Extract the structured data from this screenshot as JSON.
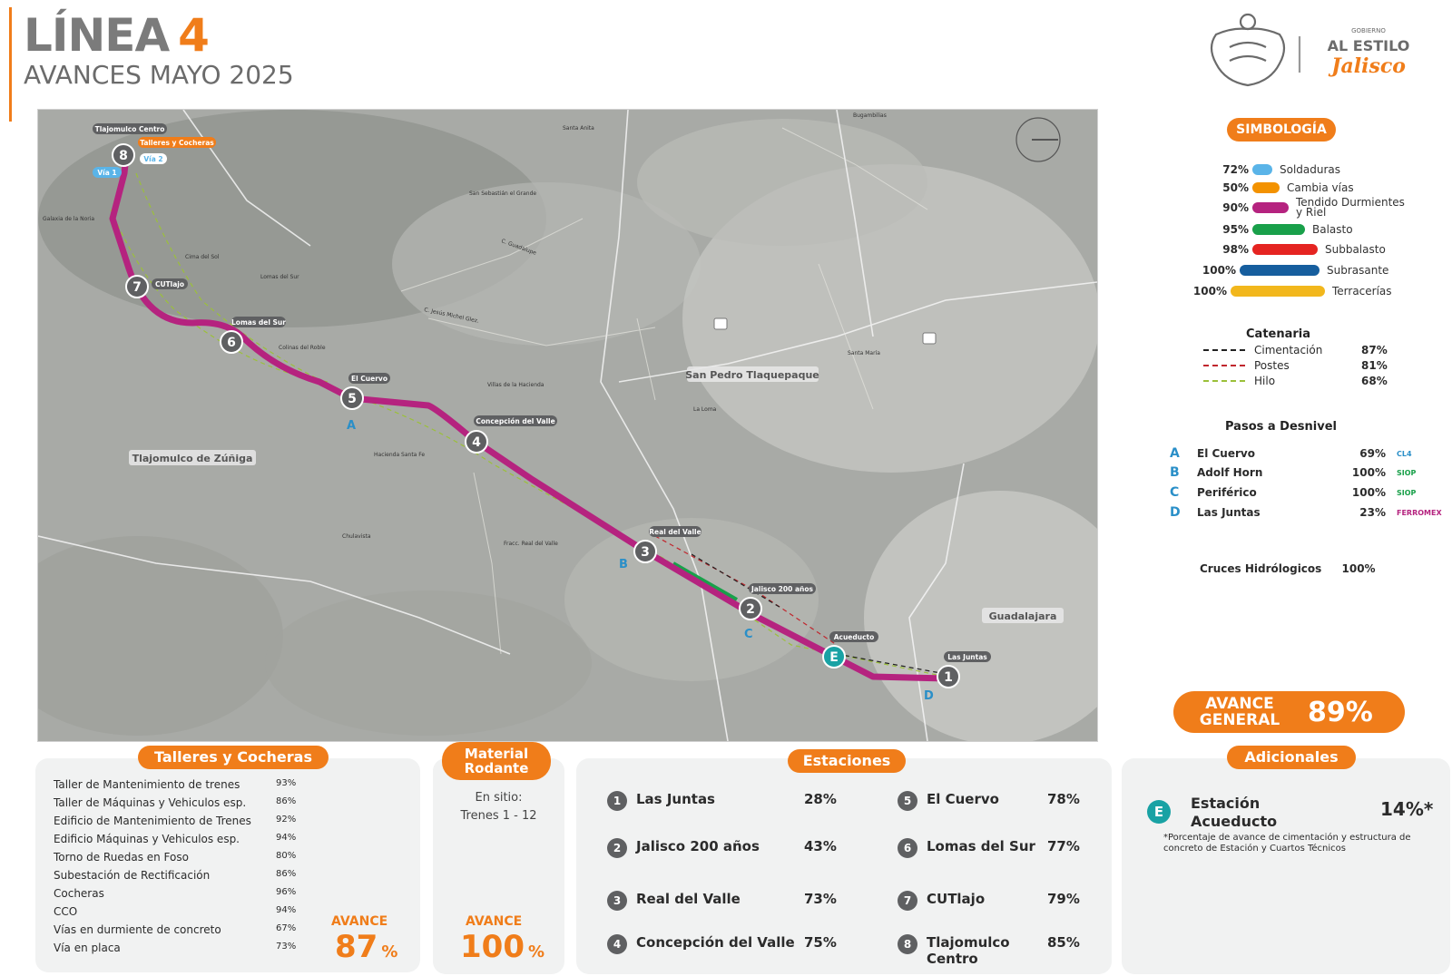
{
  "header": {
    "title_text": "LÍNEA",
    "title_number": "4",
    "subtitle": "AVANCES MAYO 2025",
    "logo_text_top": "GOBIERNO",
    "logo_text_mid": "AL ESTILO",
    "logo_text_bottom": "Jalisco"
  },
  "map": {
    "place_labels": {
      "tlajomulco_centro": "Tlajomulco Centro",
      "talleres_cocheras": "Talleres y Cocheras",
      "via1": "Vía 1",
      "via2": "Vía 2",
      "cutlajo": "CUTlajo",
      "lomas_del_sur": "Lomas del Sur",
      "el_cuervo": "El Cuervo",
      "concepcion_del_valle": "Concepción del Valle",
      "real_del_valle": "Real del Valle",
      "jalisco_200": "Jalisco 200 años",
      "acueducto": "Acueducto",
      "las_juntas": "Las Juntas",
      "san_pedro": "San Pedro Tlaquepaque",
      "tlajomulco_zuniga": "Tlajomulco de Zúñiga",
      "guadalajara": "Guadalajara"
    },
    "small_labels": [
      "Santa Anita",
      "San Sebastián el Grande",
      "Cima del Sol",
      "Lomas del Sur",
      "Colinas del Roble",
      "Villas de la Hacienda",
      "Hacienda Santa Fe",
      "Chulavista",
      "Fracc. Real del Valle",
      "La Loma",
      "Santa María",
      "Bugambilias",
      "Galaxia de la Noria",
      "C. Guadalupe",
      "C. Jesús Michel Glez."
    ],
    "station_numbers": [
      "1",
      "2",
      "3",
      "4",
      "5",
      "6",
      "7",
      "8"
    ],
    "pasos_letters": [
      "A",
      "B",
      "C",
      "D"
    ],
    "acueducto_badge": "E"
  },
  "simbologia": {
    "title": "SIMBOLOGÍA",
    "items": [
      {
        "pct": "72%",
        "label": "Soldaduras",
        "color": "#5ab4e8"
      },
      {
        "pct": "50%",
        "label": "Cambia vías",
        "color": "#f39200"
      },
      {
        "pct": "90%",
        "label": "Tendido Durmientes y Riel",
        "color": "#b5237f"
      },
      {
        "pct": "95%",
        "label": "Balasto",
        "color": "#19a04a"
      },
      {
        "pct": "98%",
        "label": "Subbalasto",
        "color": "#e52421"
      },
      {
        "pct": "100%",
        "label": "Subrasante",
        "color": "#165e9e"
      },
      {
        "pct": "100%",
        "label": "Terracerías",
        "color": "#f2b71c"
      }
    ]
  },
  "catenaria": {
    "title": "Catenaria",
    "items": [
      {
        "label": "Cimentación",
        "pct": "87%",
        "color": "#222222"
      },
      {
        "label": "Postes",
        "pct": "81%",
        "color": "#c0262d"
      },
      {
        "label": "Hilo",
        "pct": "68%",
        "color": "#9bc03a"
      }
    ]
  },
  "pasos": {
    "title": "Pasos a Desnivel",
    "items": [
      {
        "letter": "A",
        "name": "El Cuervo",
        "pct": "69%",
        "agency": "CL4",
        "agency_color": "#2a8fc8"
      },
      {
        "letter": "B",
        "name": "Adolf Horn",
        "pct": "100%",
        "agency": "SIOP",
        "agency_color": "#19a04a"
      },
      {
        "letter": "C",
        "name": "Periférico",
        "pct": "100%",
        "agency": "SIOP",
        "agency_color": "#19a04a"
      },
      {
        "letter": "D",
        "name": "Las Juntas",
        "pct": "23%",
        "agency": "FERROMEX",
        "agency_color": "#b5237f"
      }
    ]
  },
  "cruces": {
    "label": "Cruces Hidrólogicos",
    "pct": "100%"
  },
  "avance_general": {
    "label": "AVANCE GENERAL",
    "value": "89%"
  },
  "talleres": {
    "title": "Talleres y Cocheras",
    "rows": [
      {
        "name": "Taller de Mantenimiento de trenes",
        "pct": "93%"
      },
      {
        "name": "Taller de Máquinas y Vehiculos esp.",
        "pct": "86%"
      },
      {
        "name": "Edificio de Mantenimiento de Trenes",
        "pct": "92%"
      },
      {
        "name": "Edificio Máquinas y  Vehiculos esp.",
        "pct": "94%"
      },
      {
        "name": "Torno de Ruedas en Foso",
        "pct": "80%"
      },
      {
        "name": "Subestación de Rectificación",
        "pct": "86%"
      },
      {
        "name": "Cocheras",
        "pct": "96%"
      },
      {
        "name": "CCO",
        "pct": "94%"
      },
      {
        "name": "Vías en durmiente de concreto",
        "pct": "67%"
      },
      {
        "name": "Vía en placa",
        "pct": "73%"
      }
    ],
    "avance_label": "AVANCE",
    "avance_value": "87",
    "avance_unit": "%"
  },
  "material": {
    "title": "Material Rodante",
    "line1": "En sitio:",
    "line2": "Trenes 1 - 12",
    "avance_label": "AVANCE",
    "avance_value": "100",
    "avance_unit": "%"
  },
  "estaciones": {
    "title": "Estaciones",
    "items": [
      {
        "num": "1",
        "name": "Las Juntas",
        "pct": "28%"
      },
      {
        "num": "2",
        "name": "Jalisco 200 años",
        "pct": "43%"
      },
      {
        "num": "3",
        "name": "Real del Valle",
        "pct": "73%"
      },
      {
        "num": "4",
        "name": "Concepción del Valle",
        "pct": "75%"
      },
      {
        "num": "5",
        "name": "El Cuervo",
        "pct": "78%"
      },
      {
        "num": "6",
        "name": "Lomas del Sur",
        "pct": "77%"
      },
      {
        "num": "7",
        "name": "CUTlajo",
        "pct": "79%"
      },
      {
        "num": "8",
        "name": "Tlajomulco Centro",
        "pct": "85%"
      }
    ]
  },
  "adicionales": {
    "title": "Adicionales",
    "badge": "E",
    "name": "Estación Acueducto",
    "pct": "14%*",
    "note": "*Porcentaje de avance de cimentación y estructura de concreto de Estación y Cuartos Técnicos"
  }
}
